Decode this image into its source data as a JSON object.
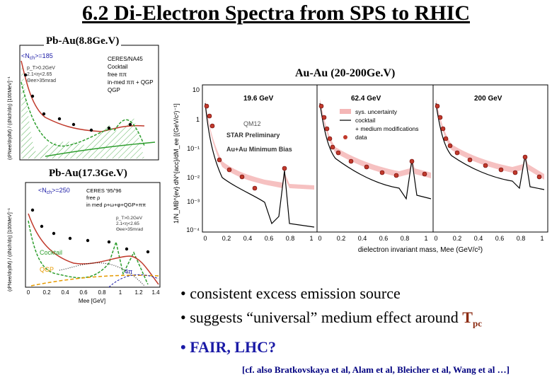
{
  "title": "6.2 Di-Electron Spectra from SPS to RHIC",
  "panels": {
    "pbau_88": {
      "label": "Pb-Au(8.8Ge.V)",
      "nch": "<N",
      "nch_sub": "ch",
      "nch_val": ">=185",
      "legend": [
        "CERES/NA45",
        "Cocktail",
        "free ππ",
        "in-med ππ + QGP",
        "QGP"
      ],
      "cuts": [
        "p_T>0.2GeV",
        "2.1<η<2.65",
        "Θee>35mrad"
      ],
      "ylabel": "(d²Nee/dηdM) / (dNch/dη) [100MeV]⁻¹"
    },
    "pbau_173": {
      "label": "Pb-Au(17.3Ge.V)",
      "nch": "<N",
      "nch_sub": "ch",
      "nch_val": ">=250",
      "legend": [
        "CERES '95/'96",
        "free ρ",
        "in med ρ+ω+φ+QGP+ππ"
      ],
      "cuts": [
        "p_T>0.2GeV",
        "2.1<η<2.65",
        "Θee>35mrad"
      ],
      "labels": [
        "Cocktail",
        "QGP",
        "4π"
      ],
      "ylabel": "(d²Nee/dηdM) / (dNch/dη) [100MeV]⁻¹",
      "xlabel": "Mee [GeV]",
      "xticks": [
        "0",
        "0.2",
        "0.4",
        "0.6",
        "0.8",
        "1",
        "1.2",
        "1.4"
      ]
    },
    "auau": {
      "label": "Au-Au (20-200Ge.V)",
      "energies": [
        "19.6 GeV",
        "62.4 GeV",
        "200 GeV"
      ],
      "legend": [
        "sys. uncertainty",
        "cocktail",
        "+ medium modifications",
        "data"
      ],
      "tags": [
        "QM12",
        "STAR Preliminary",
        "Au+Au Minimum Bias"
      ],
      "ylabel": "1/N_MB^{ev} dN^{acc}/dM_ee [(GeV/c²)⁻¹]",
      "xlabel": "dielectron invariant mass, Mee (GeV/c²)",
      "yticks": [
        "10",
        "1",
        "10⁻¹",
        "10⁻²",
        "10⁻³",
        "10⁻⁴"
      ],
      "xticks": [
        "0",
        "0.2",
        "0.4",
        "0.6",
        "0.8",
        "1"
      ]
    }
  },
  "bullets": {
    "b1": "• consistent excess emission source",
    "b2_pre": "• suggests “universal” medium effect around ",
    "b2_T": "T",
    "b2_sub": "pc",
    "b3": "• FAIR, LHC?"
  },
  "citation": "[cf. also Bratkovskaya et al, Alam et al, Bleicher et al, Wang et al …]",
  "colors": {
    "title": "#000000",
    "blue": "#1a1aa6",
    "tpc": "#8b2a10",
    "citation": "#000080",
    "data": "#c0392b",
    "band": "#f4b6b6",
    "green": "#2e9e2e"
  }
}
